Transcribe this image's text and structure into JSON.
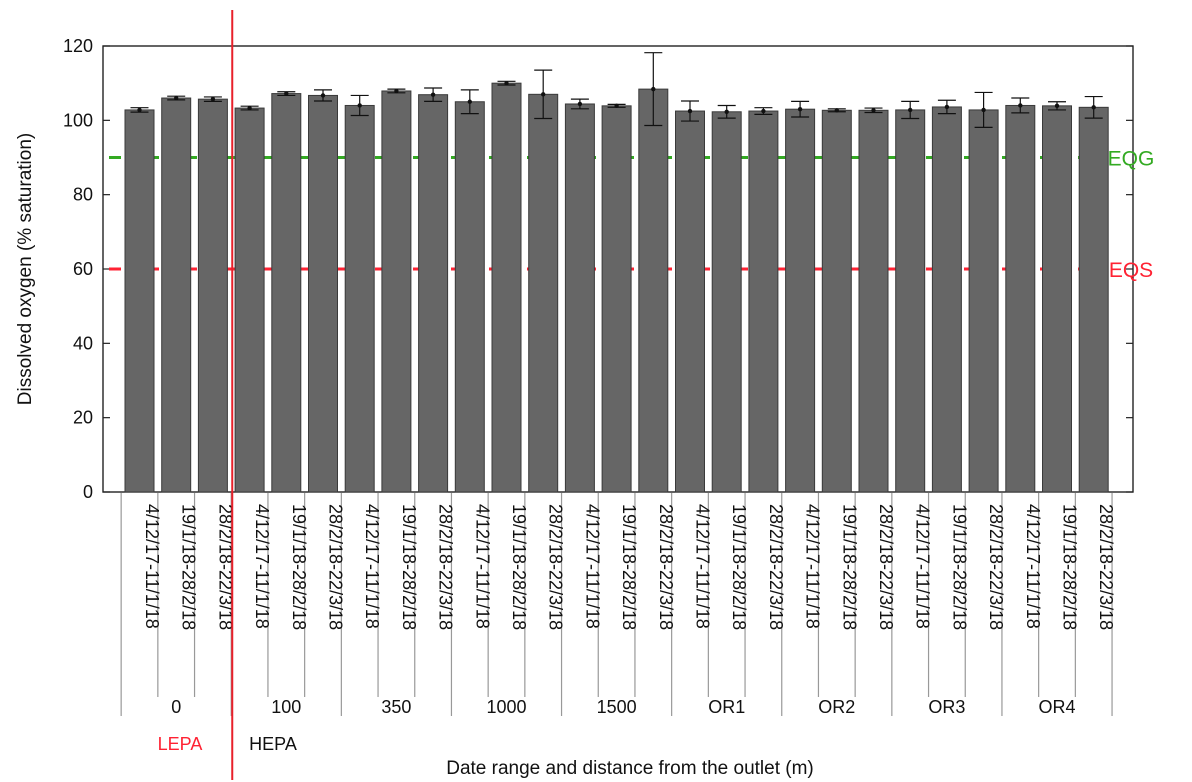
{
  "chart_data": {
    "type": "bar",
    "xlabel": "Date range and distance from the outlet (m)",
    "ylabel": "Dissolved oxygen (% saturation)",
    "ylim": [
      0,
      120
    ],
    "yticks": [
      0,
      20,
      40,
      60,
      80,
      100,
      120
    ],
    "grid": false,
    "bar_color": "#666666",
    "date_ranges": [
      "4/12/17-11/1/18",
      "19/1/18-28/2/18",
      "28/2/18-22/3/18"
    ],
    "groups": [
      "0",
      "100",
      "350",
      "1000",
      "1500",
      "OR1",
      "OR2",
      "OR3",
      "OR4"
    ],
    "values": [
      [
        102.8,
        106.0,
        105.7
      ],
      [
        103.3,
        107.2,
        106.7
      ],
      [
        104.0,
        107.9,
        106.9
      ],
      [
        105.0,
        110.0,
        107.0
      ],
      [
        104.4,
        103.9,
        108.4
      ],
      [
        102.5,
        102.3,
        102.5
      ],
      [
        103.0,
        102.7,
        102.7
      ],
      [
        102.8,
        103.6,
        102.8
      ],
      [
        104.0,
        103.9,
        103.5
      ]
    ],
    "errors": [
      [
        0.6,
        0.5,
        0.6
      ],
      [
        0.5,
        0.5,
        1.5
      ],
      [
        2.7,
        0.5,
        1.8
      ],
      [
        3.2,
        0.5,
        6.5
      ],
      [
        1.3,
        0.4,
        9.8
      ],
      [
        2.7,
        1.7,
        0.9
      ],
      [
        2.1,
        0.4,
        0.6
      ],
      [
        2.3,
        1.8,
        4.7
      ],
      [
        2.0,
        1.1,
        2.9
      ]
    ],
    "reference_lines": [
      {
        "label": "EQG",
        "value": 90,
        "color": "#33aa22"
      },
      {
        "label": "EQS",
        "value": 60,
        "color": "#ff2233"
      }
    ],
    "zones": [
      {
        "label": "LEPA",
        "color": "#ff2233"
      },
      {
        "label": "HEPA",
        "color": "#111111"
      }
    ],
    "divider_color": "#e8202a"
  }
}
